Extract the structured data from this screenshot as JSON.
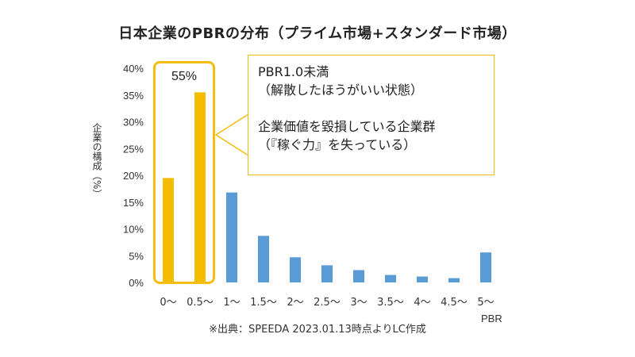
{
  "chart_data": {
    "type": "bar",
    "title": "日本企業のPBRの分布（プライム市場+スタンダード市場）",
    "ylabel": "企業の構成（%）",
    "xlabel": "PBR",
    "categories": [
      "0〜",
      "0.5〜",
      "1〜",
      "1.5〜",
      "2〜",
      "2.5〜",
      "3〜",
      "3.5〜",
      "4〜",
      "4.5〜",
      "5〜"
    ],
    "values": [
      19.5,
      35.5,
      16.8,
      8.7,
      4.7,
      3.2,
      2.3,
      1.4,
      1.1,
      0.8,
      5.6
    ],
    "bar_colors": [
      "#F5BD00",
      "#F5BD00",
      "#5B9BD5",
      "#5B9BD5",
      "#5B9BD5",
      "#5B9BD5",
      "#5B9BD5",
      "#5B9BD5",
      "#5B9BD5",
      "#5B9BD5",
      "#5B9BD5"
    ],
    "ylim": [
      0,
      40
    ],
    "yticks": [
      0,
      5,
      10,
      15,
      20,
      25,
      30,
      35,
      40
    ],
    "ytick_labels": [
      "0%",
      "5%",
      "10%",
      "15%",
      "20%",
      "25%",
      "30%",
      "35%",
      "40%"
    ],
    "grid": false,
    "legend": "none",
    "annotations": {
      "highlight_label": "55%",
      "callout_line1": "PBR1.0未満",
      "callout_line2": "（解散したほうがいい状態）",
      "callout_line3": "企業価値を毀損している企業群",
      "callout_line4": "（『稼ぐ力』を失っている）"
    },
    "source": "※出典：SPEEDA 2023.01.13時点よりLC作成"
  },
  "colors": {
    "highlight": "#F5BD00",
    "default_bar": "#5B9BD5",
    "highlight_border": "#F4BD12"
  }
}
